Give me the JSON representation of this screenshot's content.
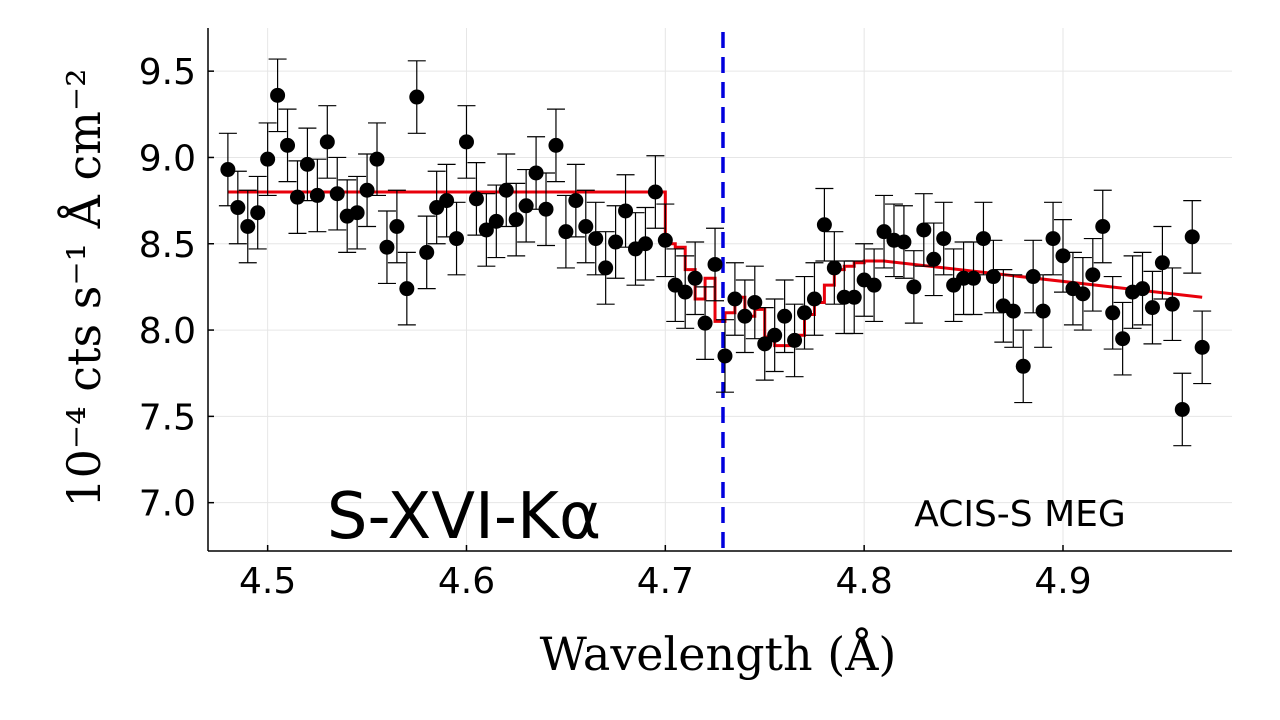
{
  "chart_data": {
    "type": "scatter",
    "xlabel": "Wavelength (Å)",
    "ylabel": "10⁻⁴ cts s⁻¹ Å cm⁻²",
    "xlim": [
      4.47,
      4.985
    ],
    "ylim": [
      6.72,
      9.75
    ],
    "xticks": [
      4.5,
      4.6,
      4.7,
      4.8,
      4.9
    ],
    "xtick_labels": [
      "4.5",
      "4.6",
      "4.7",
      "4.8",
      "4.9"
    ],
    "yticks": [
      7.0,
      7.5,
      8.0,
      8.5,
      9.0,
      9.5
    ],
    "ytick_labels": [
      "7.0",
      "7.5",
      "8.0",
      "8.5",
      "9.0",
      "9.5"
    ],
    "grid": true,
    "annotations": [
      "S-XVI-Kα",
      "ACIS-S MEG"
    ],
    "reference_line": {
      "x": 4.729,
      "style": "dashed",
      "color": "#0000dd"
    },
    "colors": {
      "data": "#000000",
      "model": "#e8000b",
      "reference": "#0000dd"
    },
    "series": [
      {
        "name": "data",
        "kind": "points",
        "x": [
          4.48,
          4.485,
          4.49,
          4.495,
          4.5,
          4.505,
          4.51,
          4.515,
          4.52,
          4.525,
          4.53,
          4.535,
          4.54,
          4.545,
          4.55,
          4.555,
          4.56,
          4.565,
          4.57,
          4.575,
          4.58,
          4.585,
          4.59,
          4.595,
          4.6,
          4.605,
          4.61,
          4.615,
          4.62,
          4.625,
          4.63,
          4.635,
          4.64,
          4.645,
          4.65,
          4.655,
          4.66,
          4.665,
          4.67,
          4.675,
          4.68,
          4.685,
          4.69,
          4.695,
          4.7,
          4.705,
          4.71,
          4.715,
          4.72,
          4.725,
          4.73,
          4.735,
          4.74,
          4.745,
          4.75,
          4.755,
          4.76,
          4.765,
          4.77,
          4.775,
          4.78,
          4.785,
          4.79,
          4.795,
          4.8,
          4.805,
          4.81,
          4.815,
          4.82,
          4.825,
          4.83,
          4.835,
          4.84,
          4.845,
          4.85,
          4.855,
          4.86,
          4.865,
          4.87,
          4.875,
          4.88,
          4.885,
          4.89,
          4.895,
          4.9,
          4.905,
          4.91,
          4.915,
          4.92,
          4.925,
          4.93,
          4.935,
          4.94,
          4.945,
          4.95,
          4.955,
          4.96,
          4.965,
          4.97
        ],
        "y": [
          8.93,
          8.71,
          8.6,
          8.68,
          8.99,
          9.36,
          9.07,
          8.77,
          8.96,
          8.78,
          9.09,
          8.79,
          8.66,
          8.68,
          8.81,
          8.99,
          8.48,
          8.6,
          8.24,
          9.35,
          8.45,
          8.71,
          8.75,
          8.53,
          9.09,
          8.76,
          8.58,
          8.63,
          8.81,
          8.64,
          8.72,
          8.91,
          8.7,
          9.07,
          8.57,
          8.75,
          8.6,
          8.53,
          8.36,
          8.51,
          8.69,
          8.47,
          8.5,
          8.8,
          8.52,
          8.26,
          8.22,
          8.3,
          8.04,
          8.38,
          7.85,
          8.18,
          8.08,
          8.16,
          7.92,
          7.97,
          8.08,
          7.94,
          8.1,
          8.18,
          8.61,
          8.36,
          8.19,
          8.19,
          8.29,
          8.26,
          8.57,
          8.52,
          8.51,
          8.25,
          8.58,
          8.41,
          8.53,
          8.26,
          8.3,
          8.3,
          8.53,
          8.31,
          8.14,
          8.11,
          7.79,
          8.31,
          8.11,
          8.53,
          8.43,
          8.24,
          8.21,
          8.32,
          8.6,
          8.1,
          7.95,
          8.22,
          8.24,
          8.13,
          8.39,
          8.15,
          7.54,
          8.54,
          7.9
        ],
        "err": 0.21
      },
      {
        "name": "model",
        "kind": "step",
        "x": [
          4.48,
          4.7,
          4.705,
          4.71,
          4.715,
          4.72,
          4.725,
          4.73,
          4.735,
          4.74,
          4.745,
          4.75,
          4.755,
          4.76,
          4.765,
          4.77,
          4.775,
          4.78,
          4.785,
          4.79,
          4.795,
          4.8,
          4.81,
          4.97
        ],
        "y": [
          8.8,
          8.5,
          8.48,
          8.35,
          8.18,
          8.3,
          8.05,
          8.1,
          8.19,
          8.08,
          8.12,
          7.96,
          7.91,
          7.91,
          7.97,
          8.09,
          8.16,
          8.26,
          8.35,
          8.37,
          8.39,
          8.4,
          8.4,
          8.19
        ]
      }
    ]
  }
}
